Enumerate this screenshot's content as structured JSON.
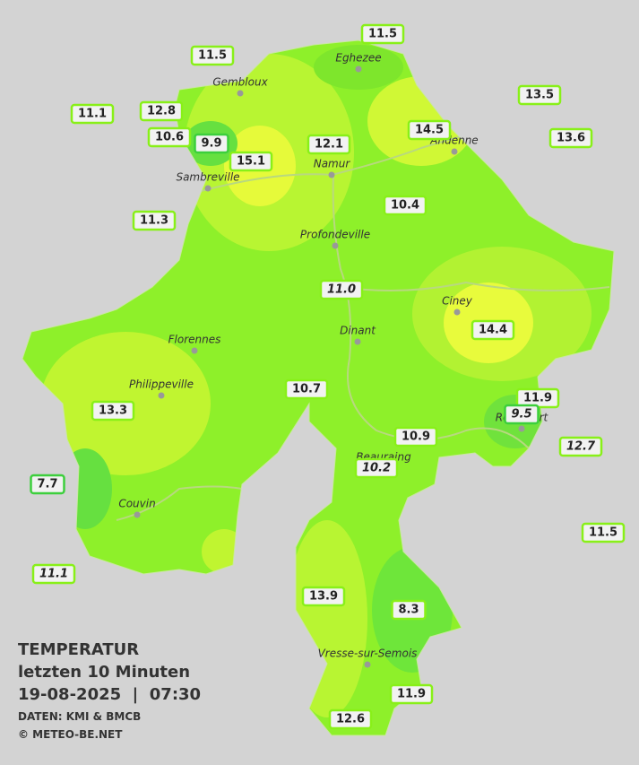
{
  "legend": {
    "title": "TEMPERATUR",
    "subtitle": "letzten 10 Minuten",
    "datetime": "19-08-2025  |  07:30",
    "source": "DATEN: KMI & BMCB",
    "copyright": "© METEO-BE.NET"
  },
  "towns": [
    "Gembloux",
    "Eghezee",
    "Andenne",
    "Namur",
    "Sambreville",
    "Profondeville",
    "Ciney",
    "Dinant",
    "Florennes",
    "Philippeville",
    "Rochefort",
    "Beauraing",
    "Couvin",
    "Vresse-sur-Semois"
  ],
  "stations": [
    {
      "label": "11.5"
    },
    {
      "label": "11.5"
    },
    {
      "label": "13.5"
    },
    {
      "label": "11.1"
    },
    {
      "label": "12.8"
    },
    {
      "label": "14.5"
    },
    {
      "label": "13.6"
    },
    {
      "label": "10.6"
    },
    {
      "label": "9.9"
    },
    {
      "label": "12.1"
    },
    {
      "label": "15.1"
    },
    {
      "label": "10.4"
    },
    {
      "label": "11.3"
    },
    {
      "label": "11.0",
      "italic": true
    },
    {
      "label": "14.4"
    },
    {
      "label": "10.7"
    },
    {
      "label": "11.9"
    },
    {
      "label": "13.3"
    },
    {
      "label": "9.5",
      "italic": true
    },
    {
      "label": "10.9"
    },
    {
      "label": "12.7",
      "italic": true
    },
    {
      "label": "10.2",
      "italic": true
    },
    {
      "label": "7.7"
    },
    {
      "label": "11.5"
    },
    {
      "label": "11.1",
      "italic": true
    },
    {
      "label": "13.9"
    },
    {
      "label": "8.3"
    },
    {
      "label": "11.9"
    },
    {
      "label": "12.6"
    }
  ]
}
